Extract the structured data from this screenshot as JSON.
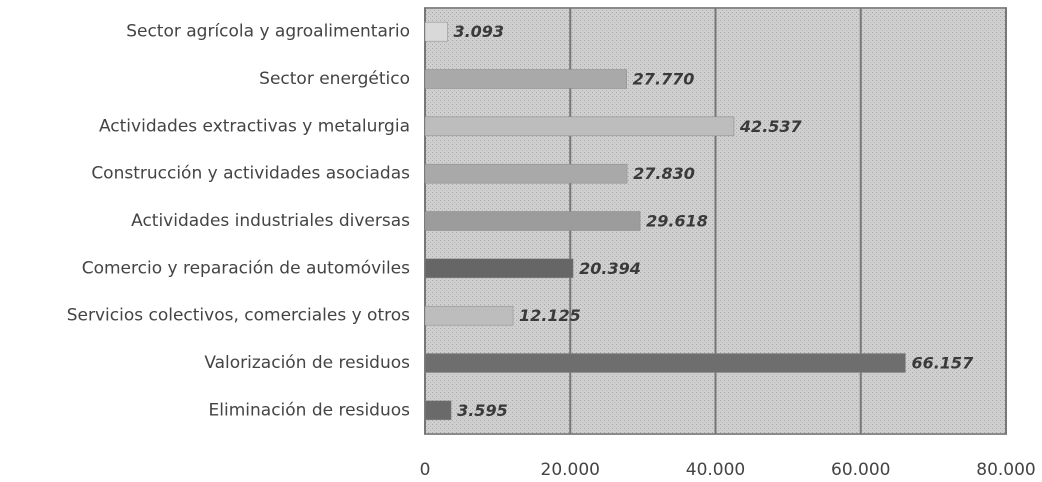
{
  "chart_data": {
    "type": "bar",
    "orientation": "horizontal",
    "categories": [
      "Sector agrícola y agroalimentario",
      "Sector energético",
      "Actividades extractivas y metalurgia",
      "Construcción y actividades asociadas",
      "Actividades industriales diversas",
      "Comercio y reparación de automóviles",
      "Servicios colectivos, comerciales y otros",
      "Valorización de residuos",
      "Eliminación de residuos"
    ],
    "values": [
      3093,
      27770,
      42537,
      27830,
      29618,
      20394,
      12125,
      66157,
      3595
    ],
    "value_labels": [
      "3.093",
      "27.770",
      "42.537",
      "27.830",
      "29.618",
      "20.394",
      "12.125",
      "66.157",
      "3.595"
    ],
    "colors": [
      "#d9d9d9",
      "#a9a9a9",
      "#bdbdbd",
      "#a9a9a9",
      "#9c9c9c",
      "#666666",
      "#bdbdbd",
      "#6e6e6e",
      "#6a6a6a"
    ],
    "xlim": [
      0,
      80000
    ],
    "xticks": [
      0,
      {
        "value": 20000,
        "label": "20.000"
      },
      {
        "value": 40000,
        "label": "40.000"
      },
      {
        "value": 60000,
        "label": "60.000"
      },
      {
        "value": 80000,
        "label": "80.000"
      }
    ],
    "grid": true
  }
}
